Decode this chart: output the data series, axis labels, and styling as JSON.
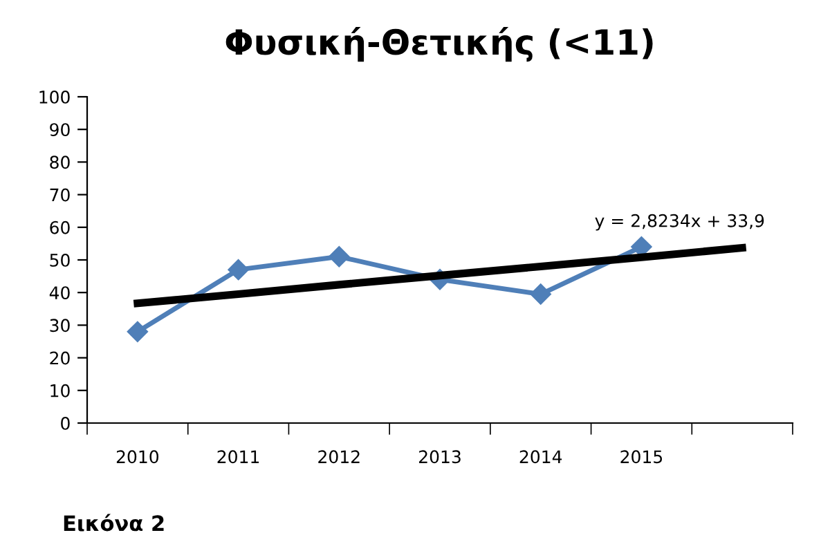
{
  "chart_data": {
    "type": "line",
    "title": "Φυσική-Θετικής (<11)",
    "categories": [
      "2010",
      "2011",
      "2012",
      "2013",
      "2014",
      "2015",
      null
    ],
    "series": [
      {
        "color": "#4f7fb8",
        "marker": "diamond",
        "values": [
          28,
          47,
          51,
          44,
          39.5,
          54,
          null
        ]
      },
      {
        "color": "#000000",
        "marker": "none",
        "values": [
          36.7,
          39.5,
          42.4,
          45.2,
          48.0,
          50.8,
          53.7
        ]
      }
    ],
    "ylim": [
      0,
      100
    ],
    "yticks": [
      0,
      10,
      20,
      30,
      40,
      50,
      60,
      70,
      80,
      90,
      100
    ],
    "grid": false,
    "legend": false,
    "annotations": [
      "y = 2,8234x + 33,9",
      "Εικόνα 2"
    ]
  }
}
